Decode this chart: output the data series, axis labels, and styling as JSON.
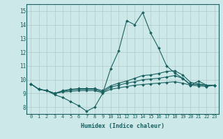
{
  "xlabel": "Humidex (Indice chaleur)",
  "background_color": "#cce8e8",
  "grid_color": "#b0c8c8",
  "line_color": "#1a6060",
  "xlim": [
    -0.5,
    23.5
  ],
  "ylim": [
    7.5,
    15.5
  ],
  "yticks": [
    8,
    9,
    10,
    11,
    12,
    13,
    14,
    15
  ],
  "xticks": [
    0,
    1,
    2,
    3,
    4,
    5,
    6,
    7,
    8,
    9,
    10,
    11,
    12,
    13,
    14,
    15,
    16,
    17,
    18,
    19,
    20,
    21,
    22,
    23
  ],
  "series": [
    [
      9.7,
      9.3,
      9.2,
      8.9,
      8.7,
      8.4,
      8.1,
      7.7,
      8.0,
      9.0,
      10.8,
      12.1,
      14.3,
      14.0,
      14.9,
      13.4,
      12.3,
      11.0,
      10.5,
      10.1,
      9.6,
      9.9,
      9.6,
      9.6
    ],
    [
      9.7,
      9.3,
      9.2,
      9.0,
      9.1,
      9.15,
      9.2,
      9.2,
      9.2,
      9.05,
      9.3,
      9.4,
      9.5,
      9.6,
      9.65,
      9.7,
      9.75,
      9.8,
      9.85,
      9.75,
      9.6,
      9.55,
      9.5,
      9.6
    ],
    [
      9.7,
      9.3,
      9.2,
      9.0,
      9.15,
      9.25,
      9.3,
      9.3,
      9.3,
      9.1,
      9.45,
      9.6,
      9.75,
      9.85,
      10.0,
      10.05,
      10.1,
      10.2,
      10.3,
      10.1,
      9.65,
      9.65,
      9.55,
      9.6
    ],
    [
      9.7,
      9.3,
      9.2,
      9.0,
      9.2,
      9.3,
      9.35,
      9.35,
      9.35,
      9.2,
      9.55,
      9.75,
      9.9,
      10.1,
      10.3,
      10.35,
      10.45,
      10.6,
      10.65,
      10.35,
      9.8,
      9.7,
      9.6,
      9.6
    ]
  ]
}
